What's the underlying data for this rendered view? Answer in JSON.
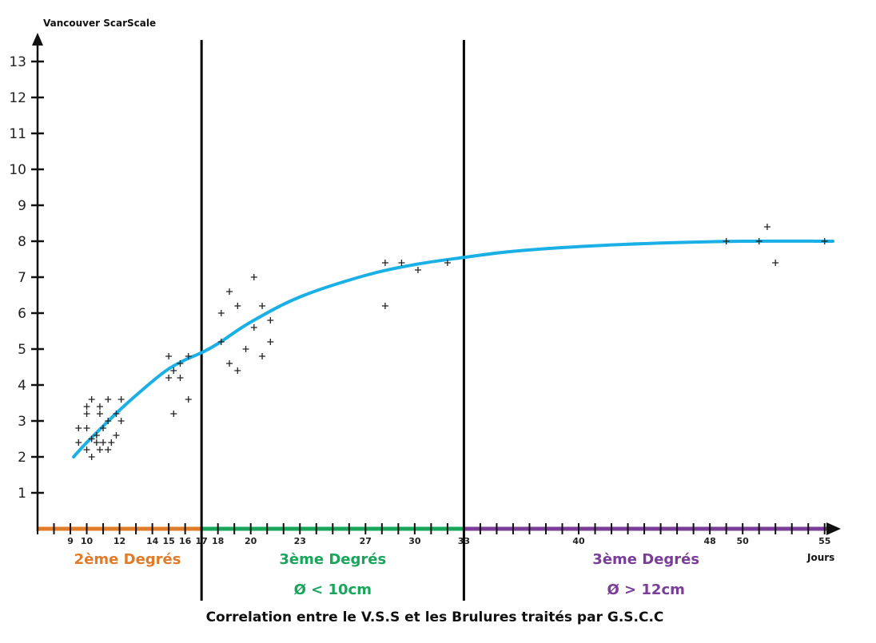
{
  "chart_data": {
    "type": "scatter",
    "title": "",
    "ylabel": "Vancouver ScarScale",
    "xlabel": "Jours",
    "caption": "Correlation entre le V.S.S et les Brulures traités par G.S.C.C",
    "ylim": [
      0,
      13
    ],
    "xlim": [
      7,
      55.5
    ],
    "y_ticks": [
      1,
      2,
      3,
      4,
      5,
      6,
      7,
      8,
      9,
      10,
      11,
      12,
      13
    ],
    "x_tick_labels": [
      9,
      10,
      12,
      14,
      15,
      16,
      17,
      18,
      20,
      23,
      27,
      30,
      33,
      40,
      48,
      50,
      55
    ],
    "zones": [
      {
        "label": "2ème Degrés",
        "sublabel": "",
        "from": 7,
        "to": 17,
        "color": "#e07b28"
      },
      {
        "label": "3ème Degrés",
        "sublabel": "Ø < 10cm",
        "from": 17,
        "to": 33,
        "color": "#1aa55c"
      },
      {
        "label": "3ème Degrés",
        "sublabel": "Ø  >  12cm",
        "from": 33,
        "to": 55,
        "color": "#7a3d98"
      }
    ],
    "boundaries": [
      17,
      33
    ],
    "points": [
      [
        9.5,
        2.4
      ],
      [
        9.5,
        2.8
      ],
      [
        10.0,
        2.8
      ],
      [
        10.0,
        3.2
      ],
      [
        10.0,
        3.4
      ],
      [
        10.0,
        2.2
      ],
      [
        10.3,
        2.5
      ],
      [
        10.3,
        3.6
      ],
      [
        10.3,
        2.0
      ],
      [
        10.6,
        2.4
      ],
      [
        10.6,
        2.6
      ],
      [
        10.8,
        3.2
      ],
      [
        10.8,
        3.4
      ],
      [
        10.8,
        2.2
      ],
      [
        11.0,
        2.4
      ],
      [
        11.0,
        2.8
      ],
      [
        11.3,
        3.6
      ],
      [
        11.3,
        3.0
      ],
      [
        11.3,
        2.2
      ],
      [
        11.5,
        2.4
      ],
      [
        11.8,
        2.6
      ],
      [
        11.8,
        3.2
      ],
      [
        12.1,
        3.6
      ],
      [
        12.1,
        3.0
      ],
      [
        15.0,
        4.2
      ],
      [
        15.0,
        4.8
      ],
      [
        15.3,
        4.4
      ],
      [
        15.3,
        3.2
      ],
      [
        15.7,
        4.2
      ],
      [
        15.7,
        4.6
      ],
      [
        16.2,
        4.8
      ],
      [
        16.2,
        3.6
      ],
      [
        18.2,
        6.0
      ],
      [
        18.2,
        5.2
      ],
      [
        18.7,
        6.6
      ],
      [
        18.7,
        4.6
      ],
      [
        19.2,
        6.2
      ],
      [
        19.2,
        4.4
      ],
      [
        19.7,
        5.0
      ],
      [
        20.2,
        7.0
      ],
      [
        20.2,
        5.6
      ],
      [
        20.7,
        6.2
      ],
      [
        20.7,
        4.8
      ],
      [
        21.2,
        5.8
      ],
      [
        21.2,
        5.2
      ],
      [
        28.2,
        7.4
      ],
      [
        28.2,
        6.2
      ],
      [
        29.2,
        7.4
      ],
      [
        30.2,
        7.2
      ],
      [
        32.0,
        7.4
      ],
      [
        49.0,
        8.0
      ],
      [
        51.0,
        8.0
      ],
      [
        51.5,
        8.4
      ],
      [
        52.0,
        7.4
      ],
      [
        55.0,
        8.0
      ]
    ],
    "trend_line": [
      [
        9.2,
        2.0
      ],
      [
        10,
        2.4
      ],
      [
        12,
        3.3
      ],
      [
        14,
        4.1
      ],
      [
        15,
        4.45
      ],
      [
        16,
        4.7
      ],
      [
        17,
        4.9
      ],
      [
        18,
        5.15
      ],
      [
        20,
        5.75
      ],
      [
        23,
        6.45
      ],
      [
        27,
        7.05
      ],
      [
        30,
        7.35
      ],
      [
        33,
        7.55
      ],
      [
        36,
        7.72
      ],
      [
        40,
        7.85
      ],
      [
        45,
        7.95
      ],
      [
        50,
        8.0
      ],
      [
        55.5,
        8.0
      ]
    ],
    "trend_color": "#1ab0e6",
    "grid": false
  }
}
